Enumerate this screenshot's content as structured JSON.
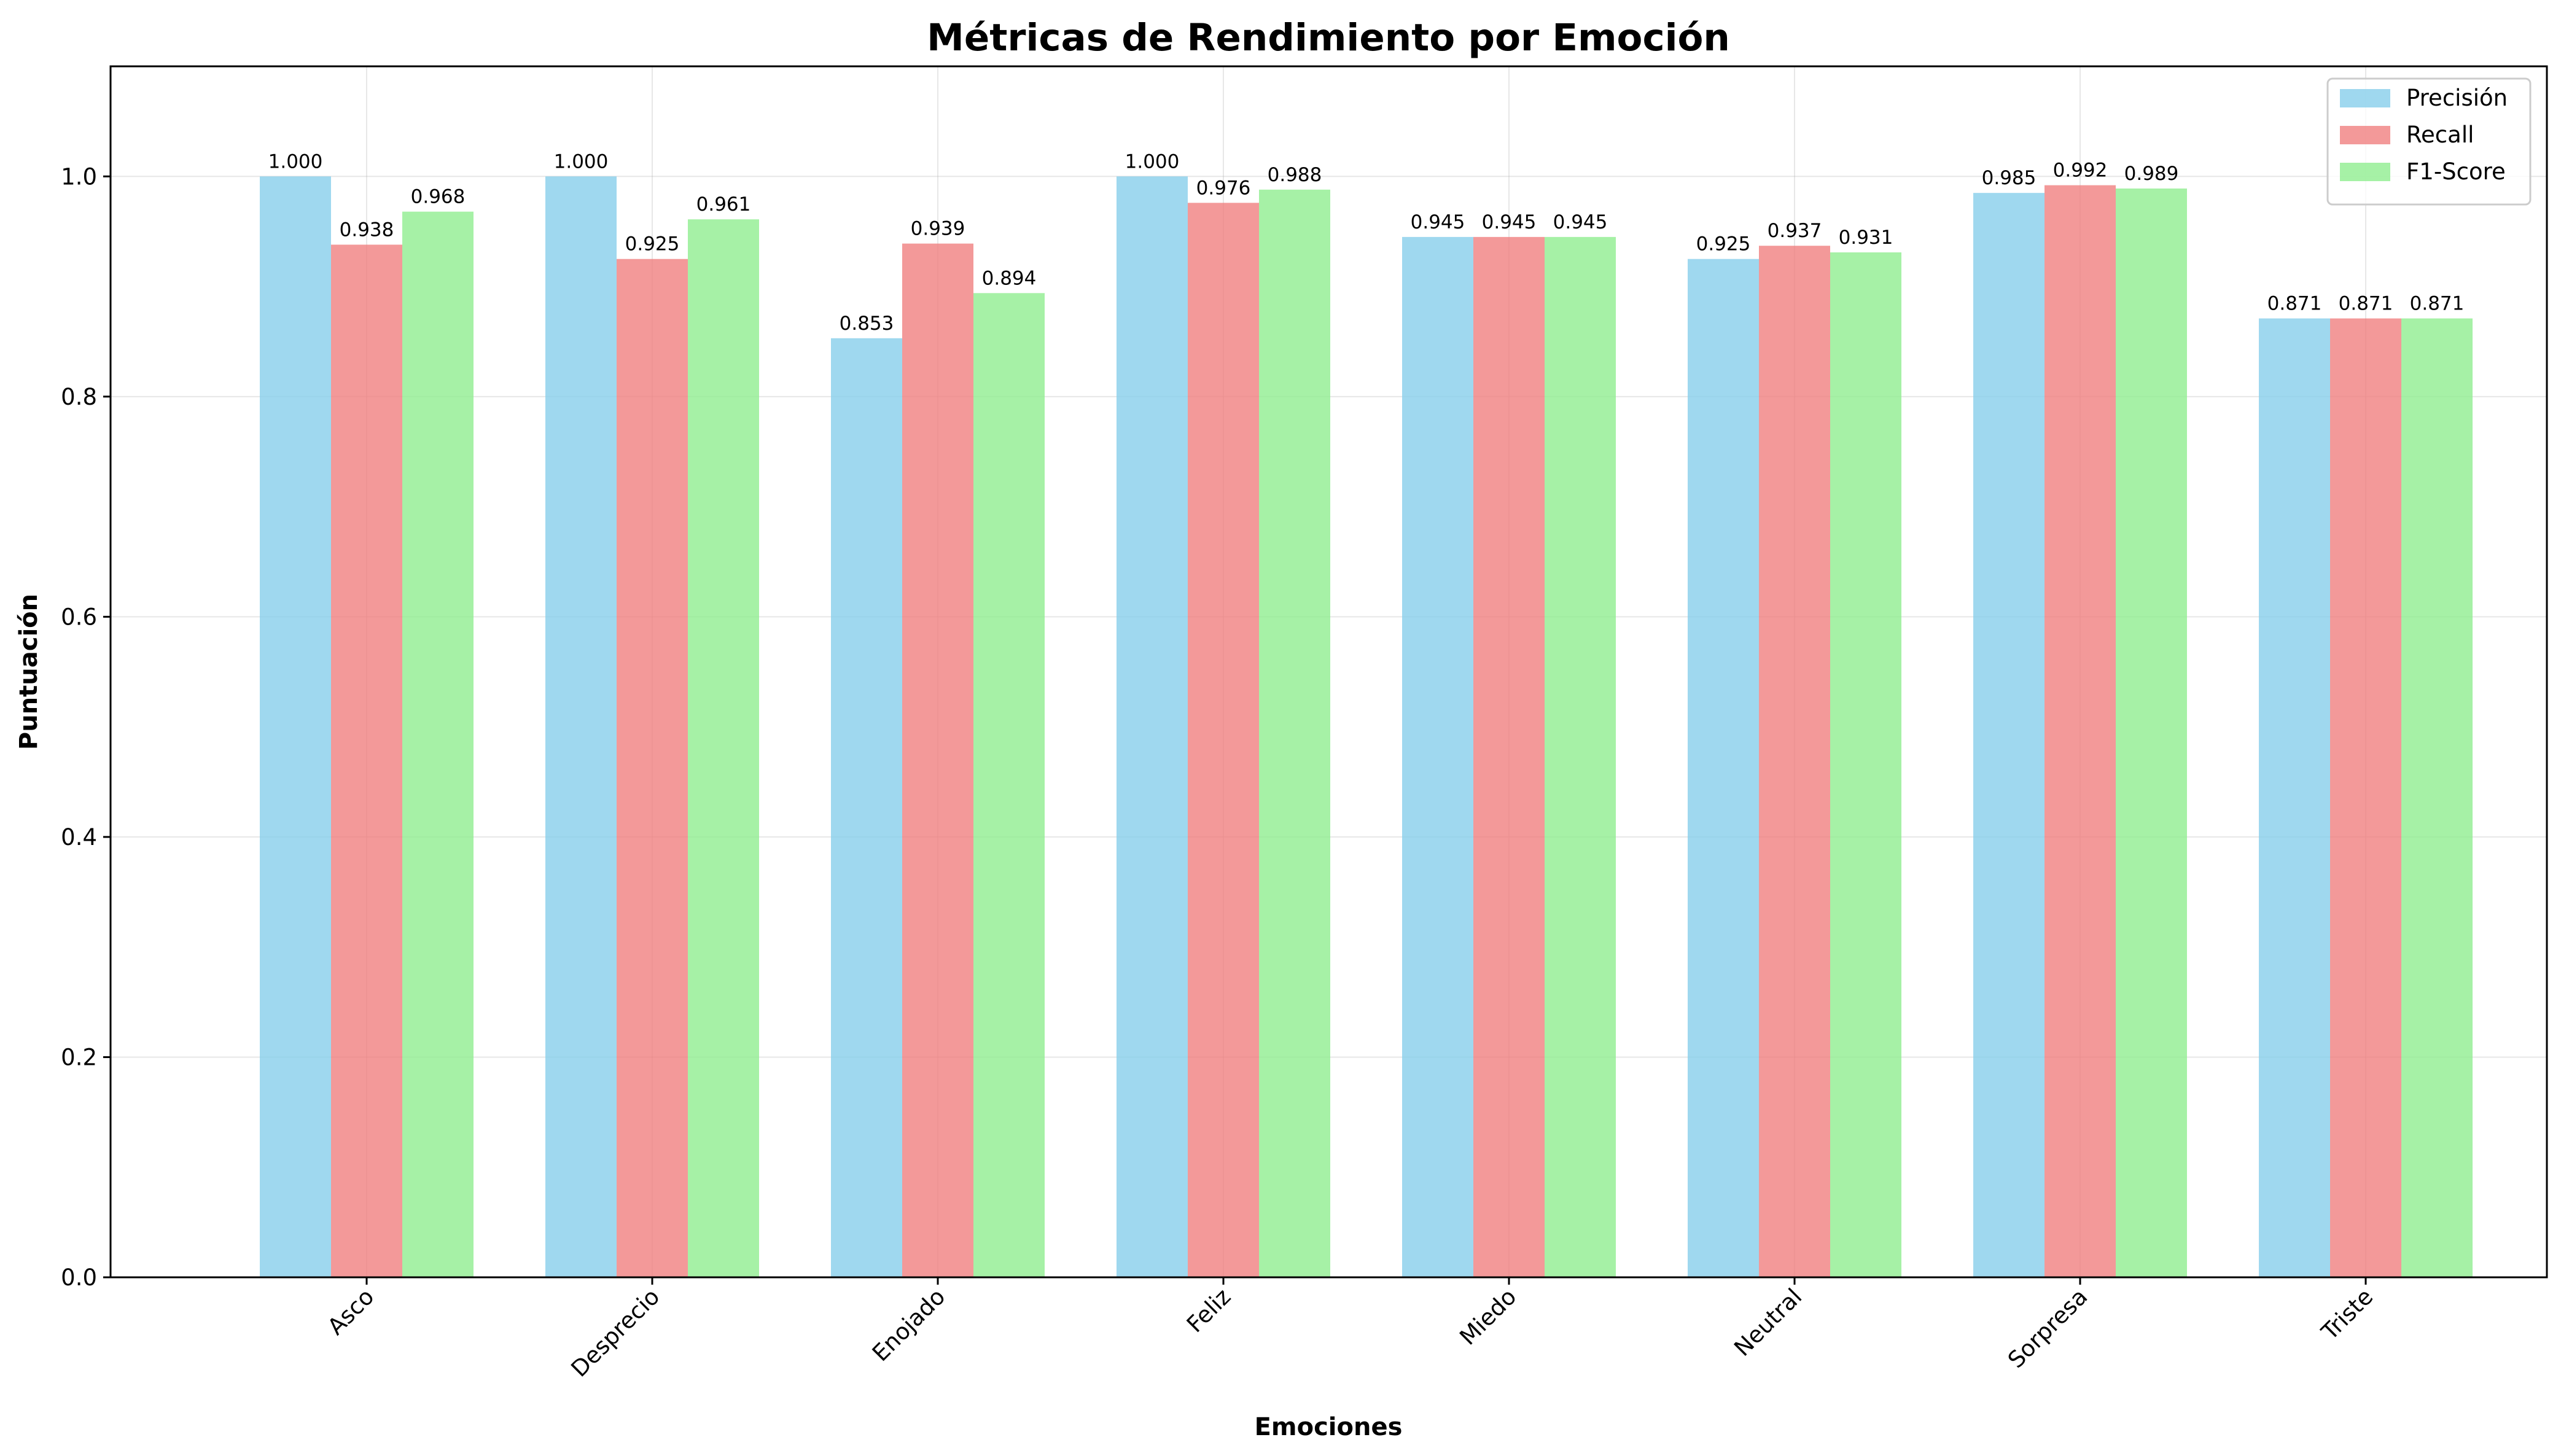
{
  "chart_data": {
    "type": "bar",
    "title": "Métricas de Rendimiento por Emoción",
    "xlabel": "Emociones",
    "ylabel": "Puntuación",
    "ylim": [
      0,
      1.1
    ],
    "yticks": [
      "0.0",
      "0.2",
      "0.4",
      "0.6",
      "0.8",
      "1.0"
    ],
    "categories": [
      "Asco",
      "Desprecio",
      "Enojado",
      "Feliz",
      "Miedo",
      "Neutral",
      "Sorpresa",
      "Triste"
    ],
    "series": [
      {
        "name": "Precisión",
        "color": "#87ceeb",
        "values": [
          1.0,
          1.0,
          0.853,
          1.0,
          0.945,
          0.925,
          0.985,
          0.871
        ],
        "labels": [
          "1.000",
          "1.000",
          "0.853",
          "1.000",
          "0.945",
          "0.925",
          "0.985",
          "0.871"
        ]
      },
      {
        "name": "Recall",
        "color": "#f08080",
        "values": [
          0.938,
          0.925,
          0.939,
          0.976,
          0.945,
          0.937,
          0.992,
          0.871
        ],
        "labels": [
          "0.938",
          "0.925",
          "0.939",
          "0.976",
          "0.945",
          "0.937",
          "0.992",
          "0.871"
        ]
      },
      {
        "name": "F1-Score",
        "color": "#90ee90",
        "values": [
          0.968,
          0.961,
          0.894,
          0.988,
          0.945,
          0.931,
          0.989,
          0.871
        ],
        "labels": [
          "0.968",
          "0.961",
          "0.894",
          "0.988",
          "0.945",
          "0.931",
          "0.989",
          "0.871"
        ]
      }
    ],
    "grid": true,
    "legend_position": "top-right"
  }
}
